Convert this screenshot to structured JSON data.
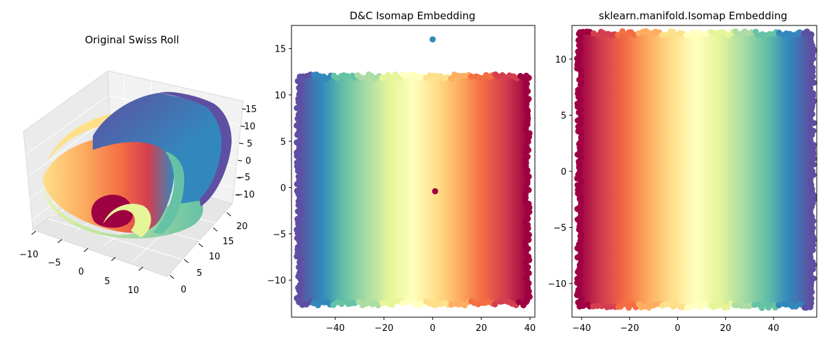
{
  "chart_data": [
    {
      "type": "scatter",
      "projection": "3d",
      "title": "Original Swiss Roll",
      "x_ticks": [
        "−10",
        "−5",
        "0",
        "5",
        "10"
      ],
      "y_ticks": [
        "0",
        "5",
        "10",
        "15",
        "20"
      ],
      "z_ticks": [
        "−10",
        "−5",
        "0",
        "5",
        "10",
        "15"
      ],
      "xlim": [
        -11,
        13
      ],
      "ylim": [
        0,
        21
      ],
      "zlim": [
        -11,
        15
      ],
      "colormap": "Spectral",
      "grid": true
    },
    {
      "type": "scatter",
      "title": "D&C Isomap Embedding",
      "xlim": [
        -58,
        42
      ],
      "ylim": [
        -14,
        17.5
      ],
      "x_ticks": [
        -40,
        -20,
        0,
        20,
        40
      ],
      "y_ticks": [
        -10,
        -5,
        0,
        5,
        10,
        15
      ],
      "x_tick_labels": [
        "−40",
        "−20",
        "0",
        "20",
        "40"
      ],
      "y_tick_labels": [
        "−10",
        "−5",
        "0",
        "5",
        "10",
        "15"
      ],
      "band_x_range": [
        -55,
        39
      ],
      "band_y_range": [
        -12.5,
        12
      ],
      "color_gradient": "Spectral_r",
      "outliers": [
        {
          "x": 0,
          "y": 16,
          "color": "#3288bd"
        },
        {
          "x": 1,
          "y": -0.4,
          "color": "#9e0142"
        }
      ]
    },
    {
      "type": "scatter",
      "title": "sklearn.manifold.Isomap Embedding",
      "xlim": [
        -44,
        58
      ],
      "ylim": [
        -13,
        13
      ],
      "x_ticks": [
        -40,
        -20,
        0,
        20,
        40
      ],
      "y_ticks": [
        -10,
        -5,
        0,
        5,
        10
      ],
      "x_tick_labels": [
        "−40",
        "−20",
        "0",
        "20",
        "40"
      ],
      "y_tick_labels": [
        "−10",
        "−5",
        "0",
        "5",
        "10"
      ],
      "band_x_range": [
        -41,
        56
      ],
      "band_y_range": [
        -12,
        12.3
      ],
      "color_gradient": "Spectral"
    }
  ],
  "colors": {
    "spectral": [
      "#9e0142",
      "#d53e4f",
      "#f46d43",
      "#fdae61",
      "#fee08b",
      "#ffffbf",
      "#e6f598",
      "#abdda4",
      "#66c2a5",
      "#3288bd",
      "#5e4fa2"
    ]
  }
}
